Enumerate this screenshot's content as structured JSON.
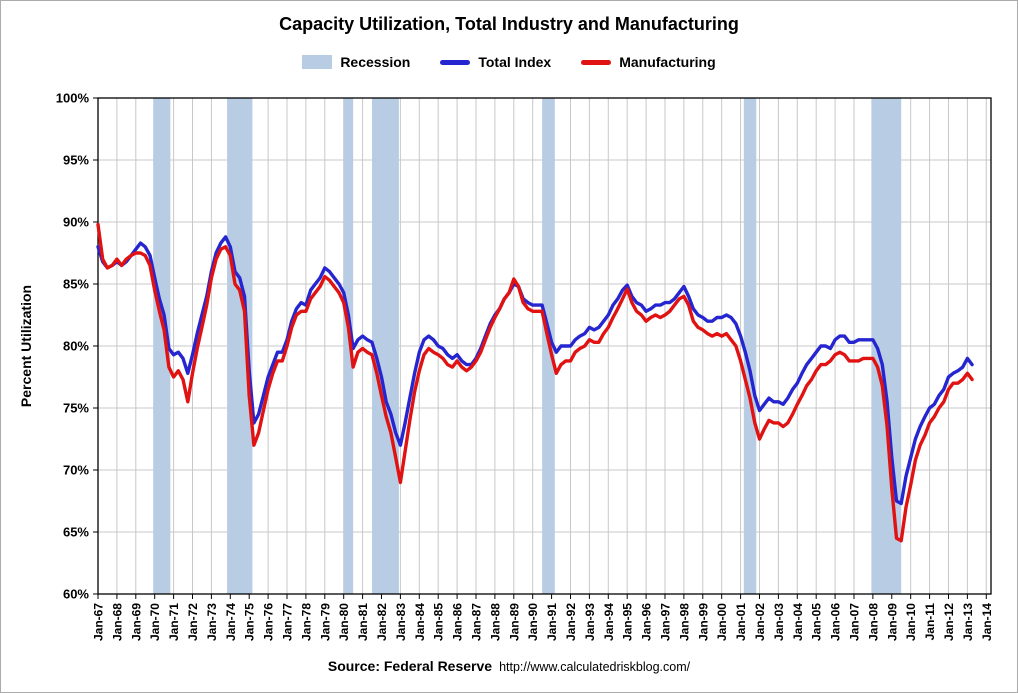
{
  "title": "Capacity Utilization, Total Industry and Manufacturing",
  "legend": {
    "recession_label": "Recession",
    "total_index_label": "Total Index",
    "manufacturing_label": "Manufacturing"
  },
  "source": {
    "label": "Source: Federal Reserve",
    "url": "http://www.calculatedriskblog.com/"
  },
  "chart_data": {
    "type": "line",
    "title": "Capacity Utilization, Total Industry and Manufacturing",
    "xlabel": "",
    "ylabel": "Percent Utilization",
    "ylim": [
      60,
      100
    ],
    "ytick_step": 5,
    "ytick_suffix": "%",
    "xlim": [
      1967,
      2014.25
    ],
    "x_start": 1967.0,
    "x_step": 0.25,
    "grid": true,
    "grid_color": "#c8c8c8",
    "legend_position": "top",
    "recession_color": "#b8cce4",
    "recessions": [
      [
        1969.92,
        1970.83
      ],
      [
        1973.83,
        1975.17
      ],
      [
        1980.0,
        1980.5
      ],
      [
        1981.5,
        1982.92
      ],
      [
        1990.5,
        1991.17
      ],
      [
        2001.17,
        2001.83
      ],
      [
        2007.92,
        2009.5
      ]
    ],
    "xtick_labels": [
      "Jan-67",
      "Jan-68",
      "Jan-69",
      "Jan-70",
      "Jan-71",
      "Jan-72",
      "Jan-73",
      "Jan-74",
      "Jan-75",
      "Jan-76",
      "Jan-77",
      "Jan-78",
      "Jan-79",
      "Jan-80",
      "Jan-81",
      "Jan-82",
      "Jan-83",
      "Jan-84",
      "Jan-85",
      "Jan-86",
      "Jan-87",
      "Jan-88",
      "Jan-89",
      "Jan-90",
      "Jan-91",
      "Jan-92",
      "Jan-93",
      "Jan-94",
      "Jan-95",
      "Jan-96",
      "Jan-97",
      "Jan-98",
      "Jan-99",
      "Jan-00",
      "Jan-01",
      "Jan-02",
      "Jan-03",
      "Jan-04",
      "Jan-05",
      "Jan-06",
      "Jan-07",
      "Jan-08",
      "Jan-09",
      "Jan-10",
      "Jan-11",
      "Jan-12",
      "Jan-13",
      "Jan-14"
    ],
    "series": [
      {
        "name": "Total Index",
        "color": "#2626d0",
        "values": [
          88.0,
          86.8,
          86.3,
          86.5,
          86.8,
          86.5,
          86.8,
          87.3,
          87.8,
          88.3,
          88.0,
          87.3,
          85.5,
          83.8,
          82.5,
          79.8,
          79.3,
          79.5,
          79.0,
          77.8,
          79.3,
          81.0,
          82.5,
          84.0,
          86.0,
          87.5,
          88.3,
          88.8,
          88.0,
          86.0,
          85.5,
          84.0,
          78.0,
          73.8,
          74.5,
          76.0,
          77.5,
          78.5,
          79.5,
          79.5,
          80.5,
          82.0,
          83.0,
          83.5,
          83.3,
          84.5,
          85.0,
          85.5,
          86.3,
          86.0,
          85.5,
          85.0,
          84.3,
          82.5,
          79.8,
          80.5,
          80.8,
          80.5,
          80.3,
          79.0,
          77.5,
          75.5,
          74.5,
          73.0,
          72.0,
          73.8,
          75.8,
          77.8,
          79.5,
          80.5,
          80.8,
          80.5,
          80.0,
          79.8,
          79.3,
          79.0,
          79.3,
          78.8,
          78.5,
          78.5,
          79.0,
          79.8,
          80.8,
          81.8,
          82.5,
          83.0,
          83.8,
          84.3,
          85.0,
          84.8,
          83.8,
          83.5,
          83.3,
          83.3,
          83.3,
          81.8,
          80.3,
          79.5,
          80.0,
          80.0,
          80.0,
          80.5,
          80.8,
          81.0,
          81.5,
          81.3,
          81.5,
          82.0,
          82.5,
          83.3,
          83.8,
          84.5,
          84.9,
          84.0,
          83.5,
          83.3,
          82.8,
          83.0,
          83.3,
          83.3,
          83.5,
          83.5,
          83.8,
          84.3,
          84.8,
          84.0,
          83.0,
          82.5,
          82.3,
          82.0,
          82.0,
          82.3,
          82.3,
          82.5,
          82.3,
          81.8,
          80.8,
          79.5,
          78.0,
          76.0,
          74.8,
          75.3,
          75.8,
          75.5,
          75.5,
          75.3,
          75.8,
          76.5,
          77.0,
          77.8,
          78.5,
          79.0,
          79.5,
          80.0,
          80.0,
          79.8,
          80.5,
          80.8,
          80.8,
          80.3,
          80.3,
          80.5,
          80.5,
          80.5,
          80.5,
          79.8,
          78.5,
          75.5,
          71.0,
          67.5,
          67.3,
          69.5,
          71.0,
          72.5,
          73.5,
          74.3,
          75.0,
          75.3,
          76.0,
          76.5,
          77.5,
          77.8,
          78.0,
          78.3,
          79.0,
          78.5
        ]
      },
      {
        "name": "Manufacturing",
        "color": "#e01212",
        "values": [
          89.8,
          87.0,
          86.3,
          86.5,
          87.0,
          86.5,
          87.0,
          87.3,
          87.5,
          87.5,
          87.3,
          86.5,
          84.5,
          82.8,
          81.3,
          78.3,
          77.5,
          78.0,
          77.3,
          75.5,
          77.8,
          79.8,
          81.5,
          83.3,
          85.5,
          87.0,
          87.8,
          88.0,
          87.3,
          85.0,
          84.5,
          82.8,
          76.0,
          72.0,
          73.0,
          74.8,
          76.5,
          77.8,
          78.8,
          78.8,
          80.0,
          81.5,
          82.5,
          82.8,
          82.8,
          83.8,
          84.3,
          84.8,
          85.6,
          85.3,
          84.8,
          84.3,
          83.5,
          81.5,
          78.3,
          79.5,
          79.8,
          79.5,
          79.3,
          77.8,
          76.0,
          74.3,
          73.0,
          71.0,
          69.0,
          71.5,
          74.0,
          76.3,
          78.0,
          79.3,
          79.8,
          79.5,
          79.3,
          79.0,
          78.5,
          78.3,
          78.8,
          78.3,
          78.0,
          78.3,
          78.8,
          79.5,
          80.5,
          81.5,
          82.3,
          83.0,
          83.8,
          84.3,
          85.4,
          84.8,
          83.5,
          83.0,
          82.8,
          82.8,
          82.8,
          81.0,
          79.3,
          77.8,
          78.5,
          78.8,
          78.8,
          79.5,
          79.8,
          80.0,
          80.5,
          80.3,
          80.3,
          81.0,
          81.5,
          82.3,
          83.0,
          83.8,
          84.6,
          83.5,
          82.8,
          82.5,
          82.0,
          82.3,
          82.5,
          82.3,
          82.5,
          82.8,
          83.3,
          83.8,
          84.0,
          83.3,
          82.0,
          81.5,
          81.3,
          81.0,
          80.8,
          81.0,
          80.8,
          81.0,
          80.5,
          80.0,
          78.8,
          77.3,
          75.8,
          73.8,
          72.5,
          73.3,
          74.0,
          73.8,
          73.8,
          73.5,
          73.8,
          74.5,
          75.3,
          76.0,
          76.8,
          77.3,
          78.0,
          78.5,
          78.5,
          78.8,
          79.3,
          79.5,
          79.3,
          78.8,
          78.8,
          78.8,
          79.0,
          79.0,
          79.0,
          78.3,
          76.8,
          73.5,
          68.5,
          64.5,
          64.3,
          67.0,
          68.8,
          70.8,
          72.0,
          72.8,
          73.8,
          74.3,
          75.0,
          75.5,
          76.5,
          77.0,
          77.0,
          77.3,
          77.8,
          77.3
        ]
      }
    ]
  }
}
